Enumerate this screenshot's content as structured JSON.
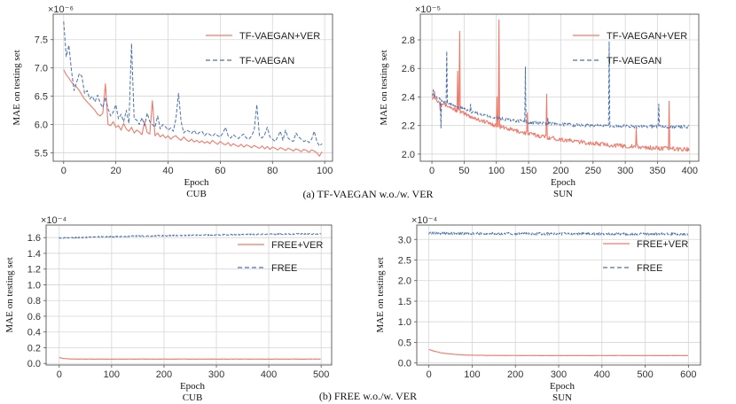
{
  "captions": {
    "top": "(a) TF-VAEGAN w.o./w. VER",
    "bottom": "(b) FREE w.o./w. VER"
  },
  "colors": {
    "ver": "#f07a6a",
    "base": "#4a72b0"
  },
  "chart_data": [
    {
      "id": "p1",
      "type": "line",
      "xlabel": "Epoch",
      "subtitle": "CUB",
      "ylabel": "MAE on testing set",
      "multiplier": "×10⁻⁶",
      "xlim": [
        -4,
        103
      ],
      "ylim": [
        5.35,
        7.95
      ],
      "xticks": [
        0,
        20,
        40,
        60,
        80,
        100
      ],
      "yticks": [
        5.5,
        6.0,
        6.5,
        7.0,
        7.5
      ],
      "yticklabels": [
        "5.5",
        "6.0",
        "6.5",
        "7.0",
        "7.5"
      ],
      "series": [
        {
          "name": "TF-VAEGAN+VER",
          "style": "solid",
          "x_start": 0,
          "x_step": 1,
          "values": [
            6.97,
            6.88,
            6.82,
            6.75,
            6.7,
            6.66,
            6.6,
            6.52,
            6.45,
            6.4,
            6.35,
            6.3,
            6.25,
            6.18,
            6.15,
            6.2,
            6.72,
            6.0,
            5.98,
            6.05,
            5.95,
            5.98,
            5.9,
            6.02,
            5.92,
            5.88,
            5.95,
            5.85,
            5.9,
            5.87,
            5.82,
            6.05,
            5.86,
            5.83,
            6.42,
            5.8,
            5.85,
            5.78,
            5.82,
            5.76,
            5.8,
            5.74,
            5.78,
            5.8,
            5.75,
            5.72,
            5.78,
            5.73,
            5.7,
            5.74,
            5.69,
            5.72,
            5.68,
            5.71,
            5.67,
            5.7,
            5.66,
            5.72,
            5.68,
            5.65,
            5.7,
            5.66,
            5.64,
            5.68,
            5.62,
            5.66,
            5.63,
            5.61,
            5.65,
            5.6,
            5.64,
            5.62,
            5.59,
            5.63,
            5.6,
            5.58,
            5.62,
            5.57,
            5.61,
            5.56,
            5.6,
            5.58,
            5.55,
            5.59,
            5.57,
            5.54,
            5.58,
            5.56,
            5.53,
            5.57,
            5.55,
            5.52,
            5.56,
            5.54,
            5.51,
            5.55,
            5.53,
            5.5,
            5.44,
            5.52
          ]
        },
        {
          "name": "TF-VAEGAN",
          "style": "dashed",
          "x_start": 0,
          "x_step": 1,
          "values": [
            7.82,
            7.2,
            7.4,
            6.95,
            6.6,
            6.75,
            6.9,
            6.85,
            6.55,
            6.6,
            6.45,
            6.5,
            6.4,
            6.52,
            6.38,
            6.3,
            6.48,
            6.28,
            6.15,
            6.22,
            6.35,
            6.1,
            6.18,
            6.05,
            6.25,
            6.02,
            7.43,
            6.1,
            6.08,
            6.0,
            6.12,
            5.98,
            6.2,
            6.05,
            6.0,
            5.95,
            6.15,
            5.92,
            6.0,
            5.96,
            5.9,
            5.94,
            5.88,
            6.1,
            6.55,
            6.05,
            5.85,
            5.9,
            5.88,
            5.84,
            5.9,
            5.82,
            5.86,
            5.88,
            5.8,
            5.85,
            5.82,
            5.79,
            5.84,
            5.8,
            5.78,
            5.85,
            5.95,
            5.8,
            5.76,
            5.82,
            5.78,
            5.75,
            5.8,
            5.83,
            5.76,
            5.74,
            5.8,
            5.9,
            6.35,
            5.8,
            5.76,
            5.82,
            5.95,
            5.78,
            5.74,
            5.7,
            5.78,
            5.88,
            5.72,
            5.9,
            5.76,
            5.72,
            5.7,
            5.85,
            5.78,
            5.74,
            5.7,
            5.72,
            5.68,
            5.74,
            5.88,
            5.7,
            5.62,
            5.66
          ]
        }
      ],
      "legend": {
        "loc": "upper-right",
        "entries": [
          "TF-VAEGAN+VER",
          "TF-VAEGAN"
        ]
      }
    },
    {
      "id": "p2",
      "type": "line",
      "xlabel": "Epoch",
      "subtitle": "SUN",
      "ylabel": "MAE on testing set",
      "multiplier": "×10⁻⁵",
      "xlim": [
        -18,
        414
      ],
      "ylim": [
        1.95,
        2.98
      ],
      "xticks": [
        0,
        50,
        100,
        150,
        200,
        250,
        300,
        350,
        400
      ],
      "yticks": [
        2.0,
        2.2,
        2.4,
        2.6,
        2.8
      ],
      "yticklabels": [
        "2.0",
        "2.2",
        "2.4",
        "2.6",
        "2.8"
      ],
      "series": [
        {
          "name": "TF-VAEGAN+VER",
          "style": "solid",
          "generator": {
            "n": 400,
            "start": 2.4,
            "end": 2.01,
            "knee": 0.35,
            "noise": 0.015,
            "spikes": [
              [
                4,
                2.44
              ],
              [
                13,
                2.3
              ],
              [
                40,
                2.58
              ],
              [
                43,
                2.86
              ],
              [
                101,
                2.4
              ],
              [
                104,
                2.94
              ],
              [
                148,
                2.29
              ],
              [
                178,
                2.42
              ],
              [
                317,
                2.18
              ],
              [
                368,
                2.37
              ]
            ]
          }
        },
        {
          "name": "TF-VAEGAN",
          "style": "dashed",
          "generator": {
            "n": 400,
            "start": 2.42,
            "end": 2.19,
            "knee": 0.2,
            "noise": 0.012,
            "spikes": [
              [
                2,
                2.45
              ],
              [
                14,
                2.18
              ],
              [
                23,
                2.72
              ],
              [
                60,
                2.35
              ],
              [
                145,
                2.61
              ],
              [
                180,
                2.25
              ],
              [
                275,
                2.79
              ],
              [
                352,
                2.35
              ]
            ]
          }
        }
      ],
      "legend": {
        "loc": "upper-right",
        "entries": [
          "TF-VAEGAN+VER",
          "TF-VAEGAN"
        ]
      }
    },
    {
      "id": "p3",
      "type": "line",
      "xlabel": "Epoch",
      "subtitle": "CUB",
      "ylabel": "MAE on testing set",
      "multiplier": "×10⁻⁴",
      "xlim": [
        -25,
        520
      ],
      "ylim": [
        -0.02,
        1.76
      ],
      "xticks": [
        0,
        100,
        200,
        300,
        400,
        500
      ],
      "yticks": [
        0.0,
        0.2,
        0.4,
        0.6,
        0.8,
        1.0,
        1.2,
        1.4,
        1.6
      ],
      "yticklabels": [
        "0.0",
        "0.2",
        "0.4",
        "0.6",
        "0.8",
        "1.0",
        "1.2",
        "1.4",
        "1.6"
      ],
      "series": [
        {
          "name": "FREE+VER",
          "style": "solid",
          "generator": {
            "n": 500,
            "start": 0.075,
            "end": 0.055,
            "knee": 0.02,
            "noise": 0.002,
            "spikes": []
          }
        },
        {
          "name": "FREE",
          "style": "dashed",
          "generator": {
            "n": 500,
            "start": 1.595,
            "end": 1.665,
            "knee": 0.7,
            "noise": 0.008,
            "spikes": []
          }
        }
      ],
      "legend": {
        "loc": "upper-right",
        "entries": [
          "FREE+VER",
          "FREE"
        ]
      }
    },
    {
      "id": "p4",
      "type": "line",
      "xlabel": "Epoch",
      "subtitle": "SUN",
      "ylabel": "MAE on testing set",
      "multiplier": "×10⁻⁴",
      "xlim": [
        -28,
        628
      ],
      "ylim": [
        -0.05,
        3.35
      ],
      "xticks": [
        0,
        100,
        200,
        300,
        400,
        500,
        600
      ],
      "yticks": [
        0.0,
        0.5,
        1.0,
        1.5,
        2.0,
        2.5,
        3.0
      ],
      "yticklabels": [
        "0.0",
        "0.5",
        "1.0",
        "1.5",
        "2.0",
        "2.5",
        "3.0"
      ],
      "series": [
        {
          "name": "FREE+VER",
          "style": "solid",
          "generator": {
            "n": 600,
            "start": 0.33,
            "end": 0.18,
            "knee": 0.06,
            "noise": 0.004,
            "spikes": []
          }
        },
        {
          "name": "FREE",
          "style": "dashed",
          "generator": {
            "n": 600,
            "start": 3.15,
            "end": 3.13,
            "knee": 0.5,
            "noise": 0.03,
            "spikes": []
          }
        }
      ],
      "legend": {
        "loc": "upper-right",
        "entries": [
          "FREE+VER",
          "FREE"
        ]
      }
    }
  ]
}
